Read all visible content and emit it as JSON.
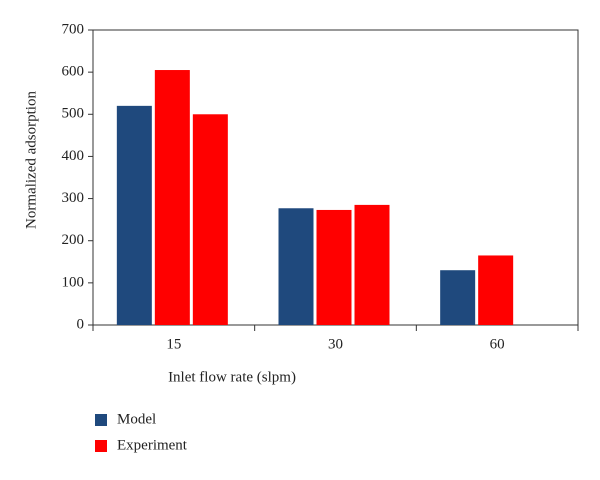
{
  "chart_data": {
    "type": "bar",
    "xlabel": "Inlet flow rate (slpm)",
    "ylabel": "Normalized adsorption",
    "categories": [
      "15",
      "30",
      "60"
    ],
    "series": [
      {
        "name": "Model",
        "color": "#1f497d",
        "values": [
          520,
          277,
          130
        ]
      },
      {
        "name": "Experiment",
        "color": "#ff0000",
        "values": [
          605,
          273,
          165
        ]
      },
      {
        "color": "#ff0000",
        "values": [
          500,
          285,
          null
        ]
      }
    ],
    "ylim": [
      0,
      700
    ],
    "yticks": [
      0,
      100,
      200,
      300,
      400,
      500,
      600,
      700
    ],
    "legend": "bottom-left"
  }
}
